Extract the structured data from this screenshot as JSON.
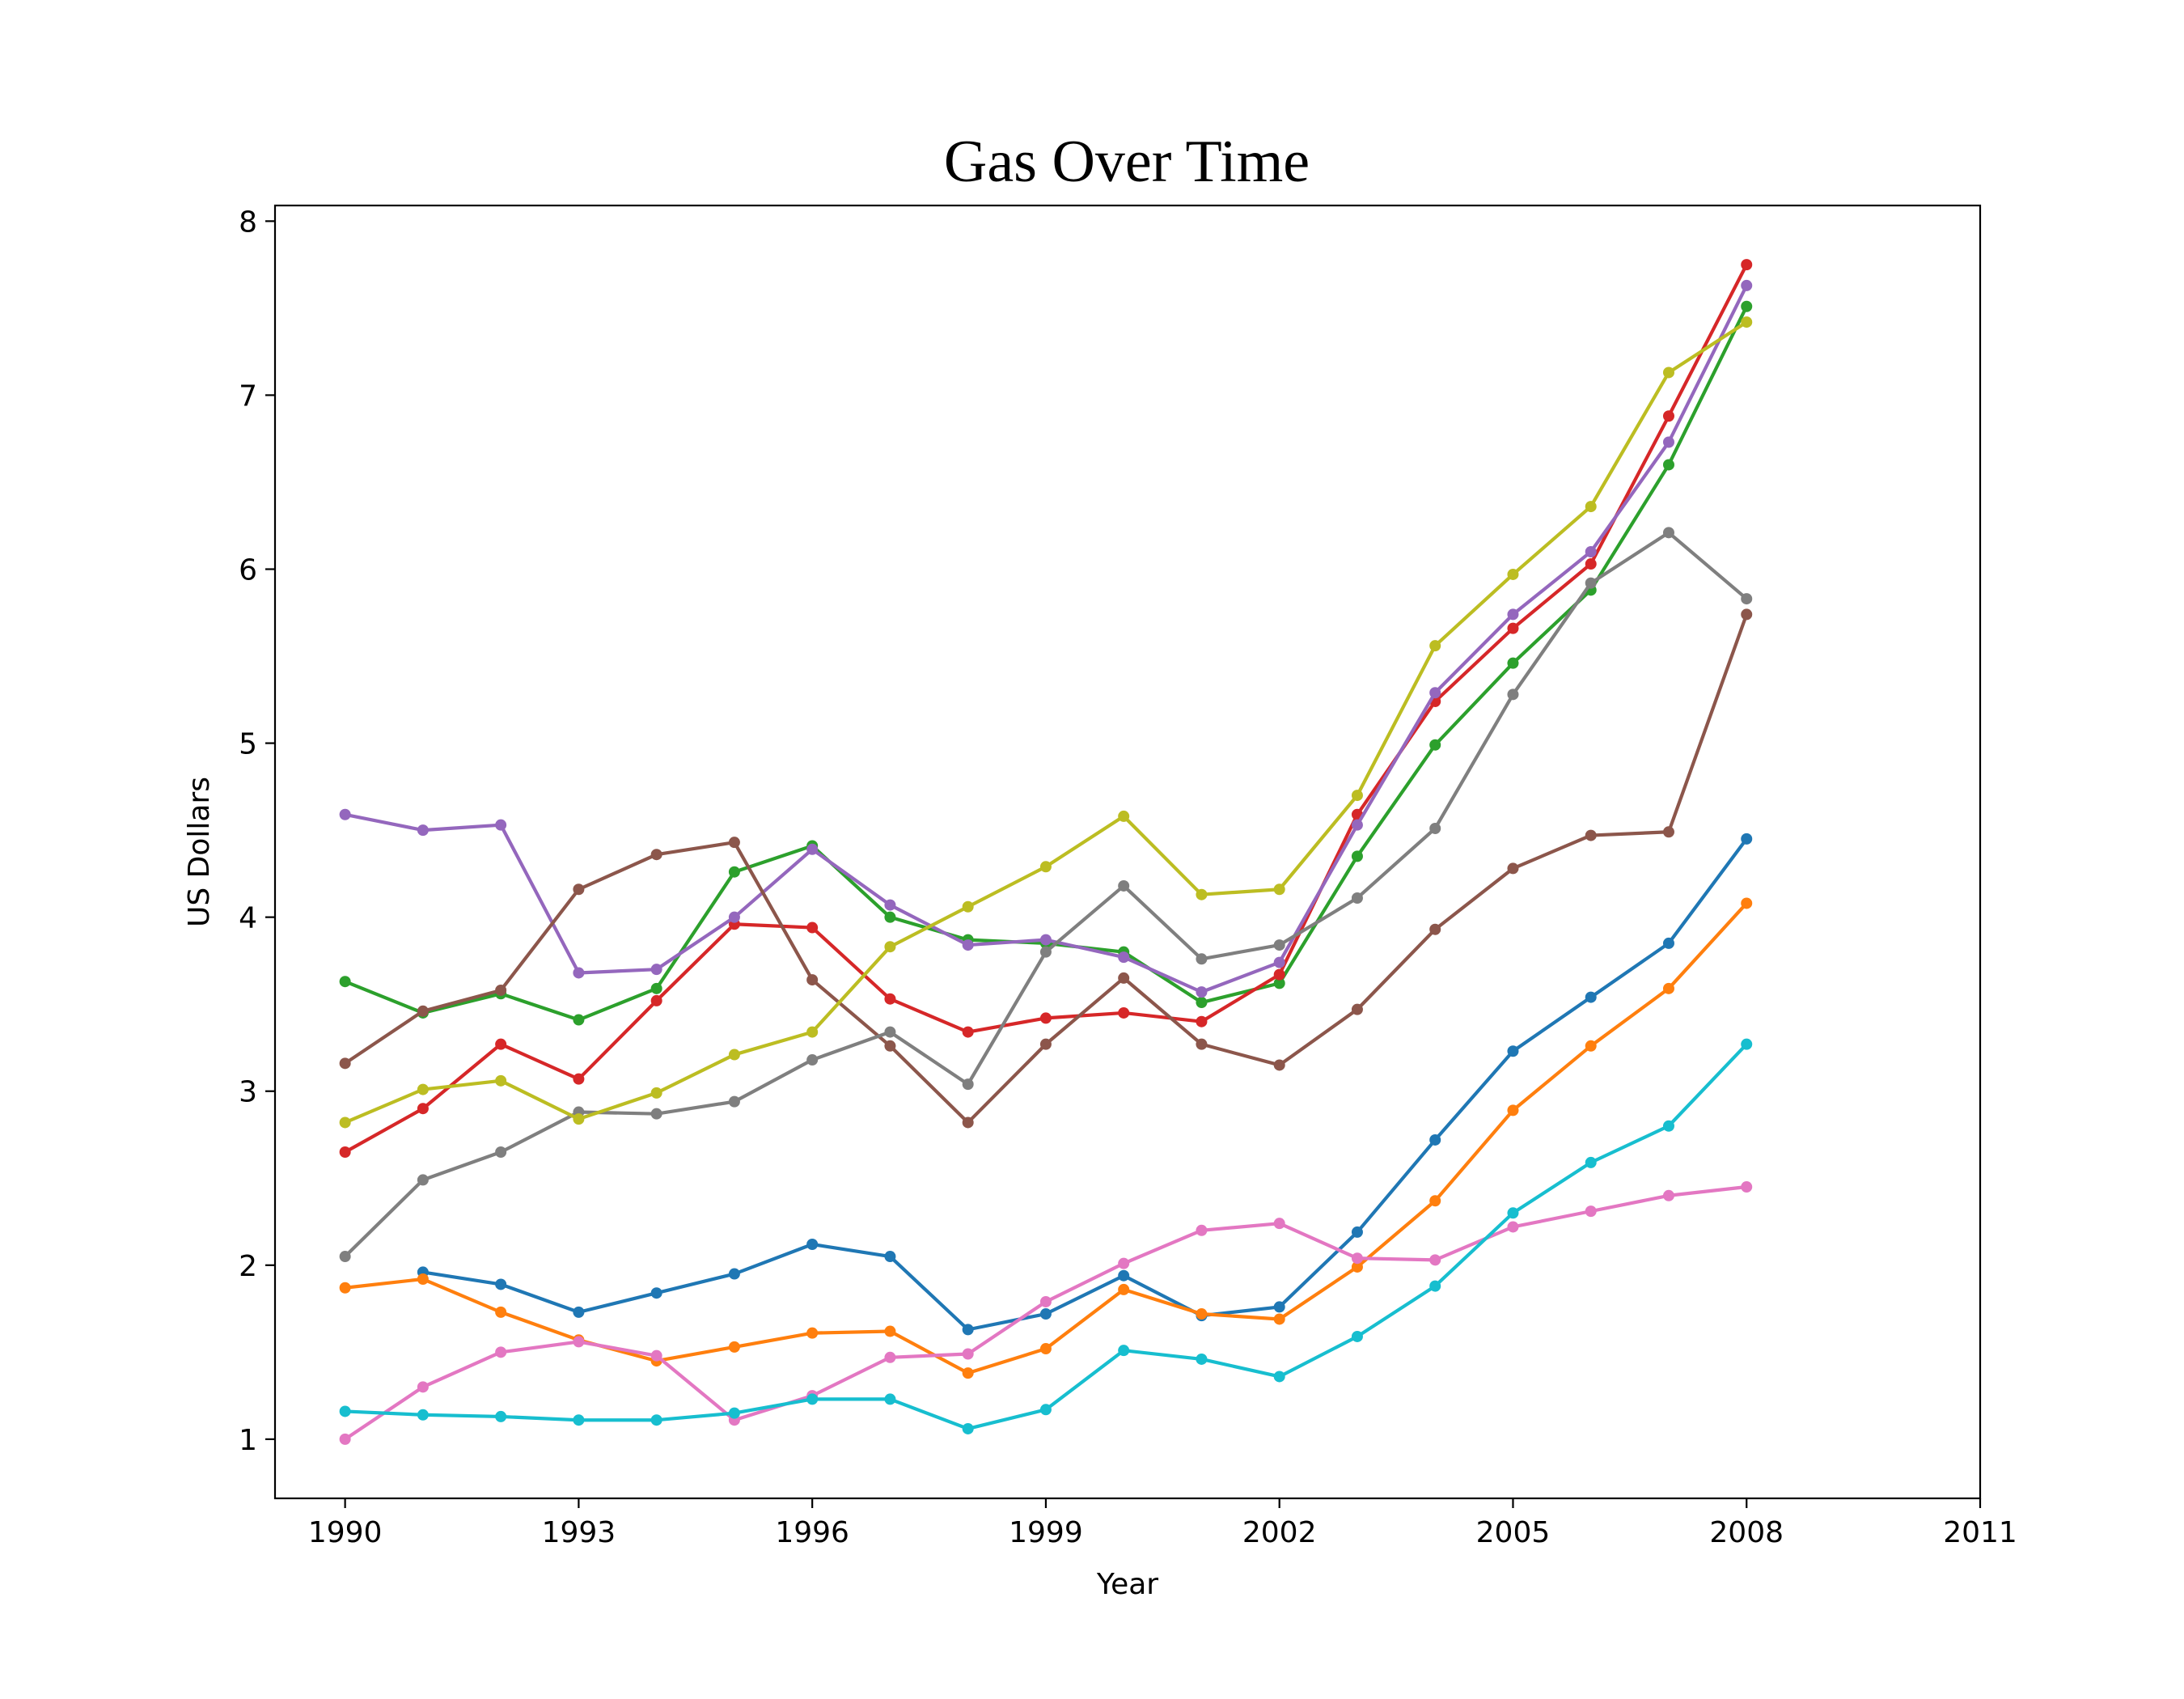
{
  "chart_data": {
    "type": "line",
    "title": "Gas Over Time",
    "xlabel": "Year",
    "ylabel": "US Dollars",
    "xlim": [
      1989.1,
      2011
    ],
    "ylim": [
      0.66,
      8.09
    ],
    "xticks": [
      1990,
      1993,
      1996,
      1999,
      2002,
      2005,
      2008,
      2011
    ],
    "yticks": [
      1,
      2,
      3,
      4,
      5,
      6,
      7,
      8
    ],
    "grid": false,
    "legend": "none",
    "x": [
      1990,
      1991,
      1992,
      1993,
      1994,
      1995,
      1996,
      1997,
      1998,
      1999,
      2000,
      2001,
      2002,
      2003,
      2004,
      2005,
      2006,
      2007,
      2008
    ],
    "series": [
      {
        "color": "#1f77b4",
        "values": [
          null,
          1.96,
          1.89,
          1.73,
          1.84,
          1.95,
          2.12,
          2.05,
          1.63,
          1.72,
          1.94,
          1.71,
          1.76,
          2.19,
          2.72,
          3.23,
          3.54,
          3.85,
          4.45
        ]
      },
      {
        "color": "#ff7f0e",
        "values": [
          1.87,
          1.92,
          1.73,
          1.57,
          1.45,
          1.53,
          1.61,
          1.62,
          1.38,
          1.52,
          1.86,
          1.72,
          1.69,
          1.99,
          2.37,
          2.89,
          3.26,
          3.59,
          4.08
        ]
      },
      {
        "color": "#2ca02c",
        "values": [
          3.63,
          3.45,
          3.56,
          3.41,
          3.59,
          4.26,
          4.41,
          4.0,
          3.87,
          3.85,
          3.8,
          3.51,
          3.62,
          4.35,
          4.99,
          5.46,
          5.88,
          6.6,
          7.51
        ]
      },
      {
        "color": "#d62728",
        "values": [
          2.65,
          2.9,
          3.27,
          3.07,
          3.52,
          3.96,
          3.94,
          3.53,
          3.34,
          3.42,
          3.45,
          3.4,
          3.67,
          4.59,
          5.24,
          5.66,
          6.03,
          6.88,
          7.75
        ]
      },
      {
        "color": "#9467bd",
        "values": [
          4.59,
          4.5,
          4.53,
          3.68,
          3.7,
          4.0,
          4.39,
          4.07,
          3.84,
          3.87,
          3.77,
          3.57,
          3.74,
          4.53,
          5.29,
          5.74,
          6.1,
          6.73,
          7.63
        ]
      },
      {
        "color": "#8c564b",
        "values": [
          3.16,
          3.46,
          3.58,
          4.16,
          4.36,
          4.43,
          3.64,
          3.26,
          2.82,
          3.27,
          3.65,
          3.27,
          3.15,
          3.47,
          3.93,
          4.28,
          4.47,
          4.49,
          5.74
        ]
      },
      {
        "color": "#e377c2",
        "values": [
          1.0,
          1.3,
          1.5,
          1.56,
          1.48,
          1.11,
          1.25,
          1.47,
          1.49,
          1.79,
          2.01,
          2.2,
          2.24,
          2.04,
          2.03,
          2.22,
          2.31,
          2.4,
          2.45
        ]
      },
      {
        "color": "#7f7f7f",
        "values": [
          2.05,
          2.49,
          2.65,
          2.88,
          2.87,
          2.94,
          3.18,
          3.34,
          3.04,
          3.8,
          4.18,
          3.76,
          3.84,
          4.11,
          4.51,
          5.28,
          5.92,
          6.21,
          5.83
        ]
      },
      {
        "color": "#bcbd22",
        "values": [
          2.82,
          3.01,
          3.06,
          2.84,
          2.99,
          3.21,
          3.34,
          3.83,
          4.06,
          4.29,
          4.58,
          4.13,
          4.16,
          4.7,
          5.56,
          5.97,
          6.36,
          7.13,
          7.42
        ]
      },
      {
        "color": "#17becf",
        "values": [
          1.16,
          1.14,
          1.13,
          1.11,
          1.11,
          1.15,
          1.23,
          1.23,
          1.06,
          1.17,
          1.51,
          1.46,
          1.36,
          1.59,
          1.88,
          2.3,
          2.59,
          2.8,
          3.27
        ]
      }
    ]
  }
}
